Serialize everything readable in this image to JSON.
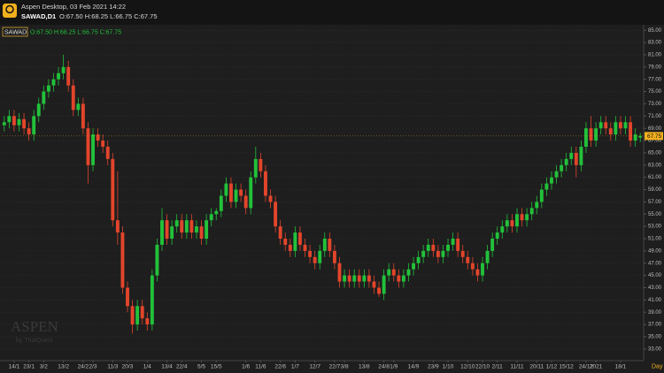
{
  "header": {
    "title": "Aspen Desktop, 03 Feb 2021 14:22",
    "symbol_timeframe": "SAWAD,D1",
    "ohlc": "O:67.50 H:68.25 L:66.75 C:67.75"
  },
  "chart_data": {
    "type": "candlestick",
    "symbol": "SAWAD",
    "ohlc_label": "O:67.50 H:68.25 L:66.75 C:67.75",
    "watermark": "ASPEN",
    "watermark_sub": "by ThaiQuest",
    "x_unit": "Day",
    "up_color": "#22c13a",
    "down_color": "#e2452b",
    "grid": true,
    "ylim": [
      31.1,
      85.9
    ],
    "yticks": [
      {
        "value": 33,
        "label": "33.00"
      },
      {
        "value": 35,
        "label": "35.00"
      },
      {
        "value": 37,
        "label": "37.00"
      },
      {
        "value": 39,
        "label": "39.00"
      },
      {
        "value": 41,
        "label": "41.00"
      },
      {
        "value": 43,
        "label": "43.00"
      },
      {
        "value": 45,
        "label": "45.00"
      },
      {
        "value": 47,
        "label": "47.00"
      },
      {
        "value": 49,
        "label": "49.00"
      },
      {
        "value": 51,
        "label": "51.00"
      },
      {
        "value": 53,
        "label": "53.00"
      },
      {
        "value": 55,
        "label": "55.00"
      },
      {
        "value": 57,
        "label": "57.00"
      },
      {
        "value": 59,
        "label": "59.00"
      },
      {
        "value": 61,
        "label": "61.00"
      },
      {
        "value": 63,
        "label": "63.00"
      },
      {
        "value": 65,
        "label": "65.00"
      },
      {
        "value": 67,
        "label": "67.00"
      },
      {
        "value": 69,
        "label": "69.00"
      },
      {
        "value": 71,
        "label": "71.00"
      },
      {
        "value": 73,
        "label": "73.00"
      },
      {
        "value": 75,
        "label": "75.00"
      },
      {
        "value": 77,
        "label": "77.00"
      },
      {
        "value": 79,
        "label": "79.00"
      },
      {
        "value": 81,
        "label": "81.00"
      },
      {
        "value": 83,
        "label": "83.00"
      },
      {
        "value": 85,
        "label": "85.00"
      }
    ],
    "last_price": {
      "value": 67.75,
      "label": "67.75"
    },
    "categories": [
      null,
      null,
      "14/1",
      null,
      null,
      "23/1",
      null,
      null,
      "3/2",
      null,
      null,
      null,
      "13/2",
      null,
      null,
      null,
      "24/2",
      null,
      "2/3",
      null,
      null,
      null,
      "11/3",
      null,
      null,
      "20/3",
      null,
      null,
      null,
      "1/4",
      null,
      null,
      null,
      "13/4",
      null,
      null,
      "22/4",
      null,
      null,
      null,
      "5/5",
      null,
      null,
      "15/5",
      null,
      null,
      null,
      null,
      null,
      "1/6",
      null,
      null,
      "11/6",
      null,
      null,
      null,
      "22/6",
      null,
      null,
      "1/7",
      null,
      null,
      null,
      "12/7",
      null,
      null,
      null,
      "22/7",
      null,
      "3/8",
      null,
      null,
      null,
      "13/8",
      null,
      null,
      null,
      "24/8",
      null,
      "1/9",
      null,
      null,
      null,
      "14/9",
      null,
      null,
      null,
      "23/9",
      null,
      null,
      "1/10",
      null,
      null,
      null,
      "12/10",
      null,
      null,
      "22/10",
      null,
      null,
      "2/11",
      null,
      null,
      null,
      "11/11",
      null,
      null,
      null,
      "20/11",
      null,
      null,
      "1/12",
      null,
      null,
      "15/12",
      null,
      null,
      null,
      "24/12",
      null,
      "2021",
      null,
      null,
      null,
      null,
      "18/1",
      null,
      null,
      null,
      null
    ],
    "open": [
      69.5,
      70,
      71,
      69.5,
      70.5,
      69,
      68,
      71,
      73,
      75,
      76,
      77,
      78,
      79,
      76,
      72,
      73,
      69,
      63,
      68,
      67,
      66,
      64,
      54,
      52,
      43,
      40,
      37,
      40,
      38,
      37,
      45,
      50,
      54,
      51,
      53,
      54,
      52,
      54,
      52,
      53,
      51,
      54,
      55,
      55.5,
      58,
      60,
      57,
      59,
      58,
      56,
      61,
      64,
      62,
      58,
      57,
      53,
      51,
      50,
      49,
      52,
      50,
      49,
      48,
      47,
      49,
      51,
      49,
      47,
      44,
      45,
      44,
      45,
      44,
      45,
      44,
      43,
      42,
      45,
      46,
      45,
      44,
      45,
      46,
      47,
      48,
      49,
      50,
      49,
      48,
      49,
      50,
      51,
      49,
      48,
      47,
      46,
      45,
      47,
      49,
      51,
      52,
      53,
      54,
      53,
      55,
      54,
      55,
      56,
      57,
      59,
      60,
      61,
      62,
      63,
      64,
      65,
      63,
      66,
      69,
      67,
      69,
      70,
      69,
      68,
      70,
      69,
      70,
      67,
      67.5
    ],
    "high": [
      71,
      72,
      72,
      71.5,
      71.5,
      70,
      72,
      74,
      76,
      77,
      78,
      79,
      81,
      80,
      77,
      74,
      74,
      70,
      69,
      69,
      68,
      67,
      65,
      62,
      53,
      44,
      41,
      41,
      41,
      39,
      46,
      51,
      56,
      55,
      54,
      55,
      55,
      55,
      55,
      54,
      54,
      55,
      56,
      56,
      59,
      61,
      61,
      60,
      60,
      59,
      62,
      66,
      65,
      63,
      59,
      58,
      54,
      52,
      51,
      53,
      53,
      51,
      50,
      49,
      50,
      52,
      52,
      50,
      48,
      46,
      46,
      46,
      46,
      46,
      46,
      45,
      44,
      46,
      47,
      47,
      46,
      46,
      47,
      48,
      49,
      50,
      51,
      51,
      50,
      50,
      51,
      52,
      52,
      50,
      49,
      48,
      47,
      48,
      50,
      52,
      53,
      54,
      55,
      55,
      56,
      56,
      56,
      57,
      58,
      60,
      61,
      62,
      63,
      64,
      65,
      66,
      66,
      67,
      70,
      71,
      70,
      71,
      71,
      70,
      71,
      71,
      71,
      71,
      69,
      68.25
    ],
    "low": [
      68.5,
      69,
      68.5,
      68.5,
      68,
      67,
      67,
      70,
      72,
      74,
      75,
      76,
      77,
      75,
      71,
      71,
      68,
      60,
      62,
      66,
      65,
      63,
      53,
      50,
      42,
      39,
      35.5,
      36,
      37,
      36,
      36,
      44,
      49,
      50,
      50,
      52,
      51,
      51,
      51,
      51,
      50,
      50,
      53,
      54,
      54.5,
      57,
      56,
      56,
      57,
      55,
      55,
      60,
      61,
      57,
      56,
      52,
      50,
      49,
      48,
      48,
      49,
      48,
      47,
      46,
      46,
      48,
      48,
      46,
      43,
      43,
      43,
      43,
      43,
      43,
      43,
      42,
      41.5,
      41,
      44,
      44,
      43,
      43,
      44,
      45,
      46,
      47,
      48,
      48,
      47,
      47,
      48,
      49,
      48,
      47,
      46,
      45,
      44,
      44,
      46,
      48,
      50,
      51,
      52,
      52,
      52,
      53,
      53,
      54,
      55,
      56,
      58,
      59,
      60,
      61,
      62,
      63,
      61,
      62,
      65,
      66,
      66,
      68,
      68,
      67,
      67,
      68,
      68,
      66,
      66,
      66.75
    ],
    "close": [
      70,
      71,
      69.5,
      70.5,
      69,
      68,
      71,
      73,
      75,
      76,
      77,
      78,
      79,
      76,
      72,
      73,
      69,
      63,
      68,
      67,
      66,
      64,
      54,
      52,
      43,
      40,
      37,
      40,
      38,
      37,
      45,
      50,
      54,
      51,
      53,
      54,
      52,
      54,
      52,
      53,
      51,
      54,
      55,
      55.5,
      58,
      60,
      57,
      59,
      58,
      56,
      61,
      64,
      62,
      58,
      57,
      53,
      51,
      50,
      49,
      52,
      50,
      49,
      48,
      47,
      49,
      51,
      49,
      47,
      44,
      45,
      44,
      45,
      44,
      45,
      44,
      43,
      42,
      45,
      46,
      45,
      44,
      45,
      46,
      47,
      48,
      49,
      50,
      49,
      48,
      49,
      50,
      51,
      49,
      48,
      47,
      46,
      45,
      47,
      49,
      51,
      52,
      53,
      54,
      53,
      55,
      54,
      55,
      56,
      57,
      59,
      60,
      61,
      62,
      63,
      64,
      65,
      63,
      66,
      69,
      67,
      69,
      70,
      69,
      68,
      70,
      69,
      70,
      67,
      68,
      67.75
    ]
  }
}
